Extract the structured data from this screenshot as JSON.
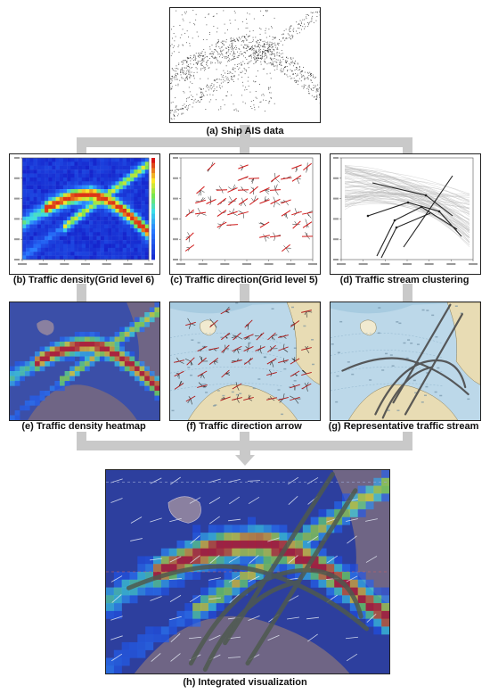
{
  "captions": {
    "a": "(a) Ship AIS data",
    "b": "(b) Traffic density(Grid level 6)",
    "c": "(c) Traffic direction(Grid level 5)",
    "d": "(d) Traffic stream clustering",
    "e": "(e) Traffic density heatmap",
    "f": "(f) Traffic direction arrow",
    "g": "(g) Representative traffic stream",
    "h": "(h) Integrated visualization"
  },
  "colors": {
    "connector": "#c9c9c9",
    "density_low": "#1e3cff",
    "density_high": "#d01010",
    "sea": "#b9d7e8",
    "land": "#7e7090",
    "stream": "#4a4a4a"
  }
}
